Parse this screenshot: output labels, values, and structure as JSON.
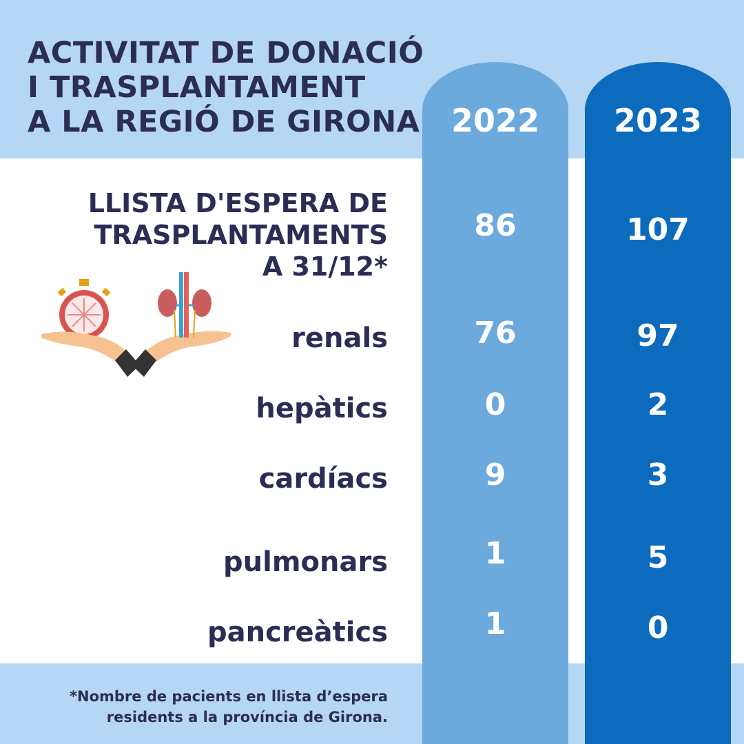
{
  "title": [
    "ACTIVITAT DE DONACIÓ",
    "I TRASPLANTAMENT",
    "A LA REGIÓ DE GIRONA"
  ],
  "years": [
    "2022",
    "2023"
  ],
  "heading": {
    "lines": [
      "LLISTA D'ESPERA DE",
      "TRASPLANTAMENTS",
      "A 31/12*"
    ],
    "values": [
      "86",
      "107"
    ]
  },
  "rows": [
    {
      "label": "renals",
      "values": [
        "76",
        "97"
      ]
    },
    {
      "label": "hepàtics",
      "values": [
        "0",
        "2"
      ]
    },
    {
      "label": "cardíacs",
      "values": [
        "9",
        "3"
      ]
    },
    {
      "label": "pulmonars",
      "values": [
        "1",
        "5"
      ]
    },
    {
      "label": "pancreàtics",
      "values": [
        "1",
        "0"
      ]
    }
  ],
  "footnote": [
    "*Nombre de pacients en llista d’espera",
    "residents a la província de Girona."
  ],
  "colors": {
    "band": "#b5d6f4",
    "col2022": "#6ca9dc",
    "col2023": "#0d6bbd",
    "text": "#2b2d55"
  },
  "illustration": "hands-holding-stopwatch-and-kidneys-icon"
}
